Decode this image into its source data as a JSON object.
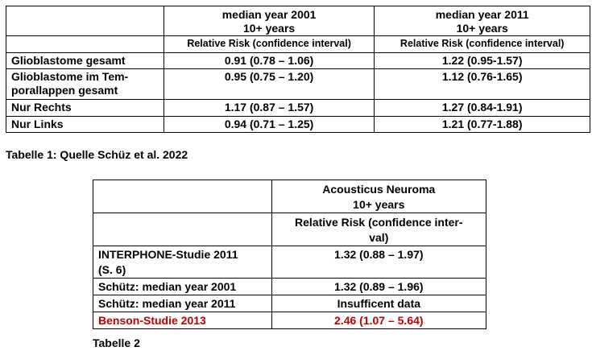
{
  "table1": {
    "header": {
      "col1_line1": "median year 2001",
      "col1_line2": "10+ years",
      "col2_line1": "median year 2011",
      "col2_line2": "10+ years",
      "sub1": "Relative Risk (confidence interval)",
      "sub2": "Relative Risk (confidence interval)"
    },
    "rows": [
      {
        "label": "Glioblastome gesamt",
        "v1": "0.91 (0.78 – 1.06)",
        "v2": "1.22 (0.95-1.57)"
      },
      {
        "label_line1": "Glioblastome im Tem-",
        "label_line2": "porallappen gesamt",
        "v1": "0.95 (0.75 – 1.20)",
        "v2": "1.12 (0.76-1.65)"
      },
      {
        "label": "Nur Rechts",
        "v1": "1.17 (0.87 – 1.57)",
        "v2": "1.27 (0.84-1.91)"
      },
      {
        "label": "Nur Links",
        "v1": "0.94 (0.71 – 1.25)",
        "v2": "1.21 (0.77-1.88)"
      }
    ],
    "caption": "Tabelle 1: Quelle Schüz et al. 2022"
  },
  "table2": {
    "header": {
      "line1": "Acousticus Neuroma",
      "line2": "10+ years",
      "sub_line1": "Relative Risk (confidence inter-",
      "sub_line2": "val)"
    },
    "rows": [
      {
        "label_line1": "INTERPHONE-Studie 2011",
        "label_line2": "(S. 6)",
        "value": "1.32 (0.88 – 1.97)"
      },
      {
        "label": "Schütz: median year 2001",
        "value": "1.32 (0.89 – 1.96)"
      },
      {
        "label": "Schütz: median year 2011",
        "value": "Insufficent data"
      },
      {
        "label": "Benson-Studie 2013",
        "value": "2.46 (1.07 – 5.64)"
      }
    ],
    "caption": "Tabelle 2",
    "highlight_color": "#c00000"
  }
}
